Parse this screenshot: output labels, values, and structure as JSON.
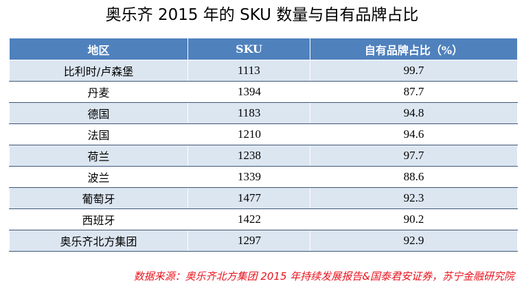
{
  "page": {
    "title": "奥乐齐 2015 年的 SKU 数量与自有品牌占比",
    "source": "数据来源：奥乐齐北方集团 2015 年持续发展报告&国泰君安证券，苏宁金融研究院"
  },
  "colors": {
    "header_bg": "#4f81bd",
    "row_alt_bg": "#dce6f1",
    "row_bg": "#ffffff",
    "row_border": "#3f5577",
    "source_text": "#e8141e"
  },
  "chart_data": {
    "type": "table",
    "title": "奥乐齐 2015 年的 SKU 数量与自有品牌占比",
    "columns": [
      "地区",
      "SKU",
      "自有品牌占比（%）"
    ],
    "rows": [
      {
        "region": "比利时/卢森堡",
        "sku": "1113",
        "ratio": "99.7"
      },
      {
        "region": "丹麦",
        "sku": "1394",
        "ratio": "87.7"
      },
      {
        "region": "德国",
        "sku": "1183",
        "ratio": "94.8"
      },
      {
        "region": "法国",
        "sku": "1210",
        "ratio": "94.6"
      },
      {
        "region": "荷兰",
        "sku": "1238",
        "ratio": "97.7"
      },
      {
        "region": "波兰",
        "sku": "1339",
        "ratio": "88.6"
      },
      {
        "region": "葡萄牙",
        "sku": "1477",
        "ratio": "92.3"
      },
      {
        "region": "西班牙",
        "sku": "1422",
        "ratio": "90.2"
      },
      {
        "region": "奥乐齐北方集团",
        "sku": "1297",
        "ratio": "92.9"
      }
    ]
  }
}
